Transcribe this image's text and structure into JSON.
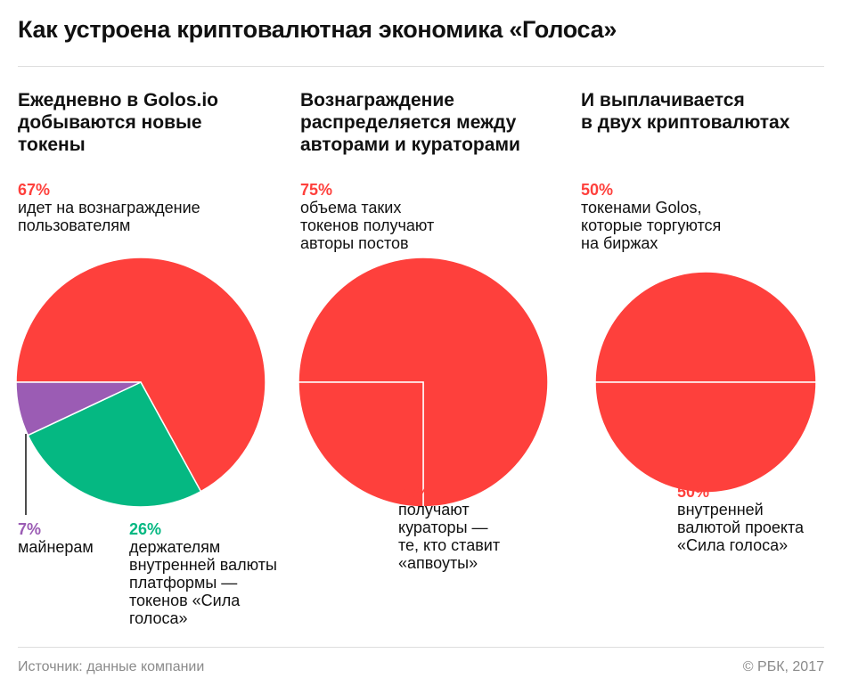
{
  "title": "Как устроена криптовалютная экономика «Голоса»",
  "colors": {
    "red": "#fe403c",
    "green": "#05b882",
    "purple": "#9b5cb4",
    "source": "#8a8a8a"
  },
  "columns": [
    {
      "heading": "Ежедневно в Golos.io\nдобываются новые\nтокены"
    },
    {
      "heading": "Вознаграждение\nраспределяется между\nавторами и кураторами"
    },
    {
      "heading": "И выплачивается\nв двух криптовалютах"
    }
  ],
  "chart_data": [
    {
      "type": "pie",
      "slices": [
        {
          "pct_label": "67%",
          "value": 67,
          "text": "идет на вознаграждение\nпользователям",
          "color": "#fe403c"
        },
        {
          "pct_label": "26%",
          "value": 26,
          "text": "держателям\nвнутренней валюты\nплатформы —\nтокенов «Сила\nголоса»",
          "color": "#05b882"
        },
        {
          "pct_label": "7%",
          "value": 7,
          "text": "майнерам",
          "color": "#9b5cb4"
        }
      ]
    },
    {
      "type": "pie",
      "slices": [
        {
          "pct_label": "75%",
          "value": 75,
          "text": "объема таких\nтокенов получают\nавторы постов",
          "color": "#fe403c"
        },
        {
          "pct_label": "25%",
          "value": 25,
          "text": "получают\nкураторы —\nте, кто ставит\n«апвоуты»",
          "color": "#fe403c"
        }
      ]
    },
    {
      "type": "pie",
      "slices": [
        {
          "pct_label": "50%",
          "value": 50,
          "text": "токенами Golos,\nкоторые торгуются\nна биржах",
          "color": "#fe403c"
        },
        {
          "pct_label": "50%",
          "value": 50,
          "text": "внутренней\nвалютой проекта\n«Сила голоса»",
          "color": "#fe403c"
        }
      ]
    }
  ],
  "footer": {
    "source": "Источник: данные компании",
    "copyright": "© РБК, 2017"
  }
}
